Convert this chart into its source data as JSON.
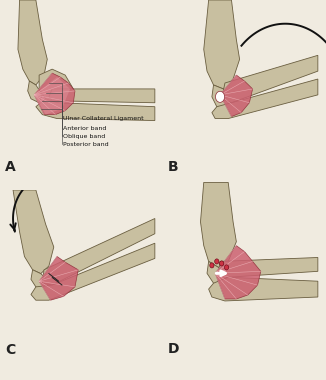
{
  "background_color": "#f0ebe0",
  "panel_labels": [
    "A",
    "B",
    "C",
    "D"
  ],
  "panel_label_fontsize": 10,
  "panel_label_color": "#222222",
  "labels_A": [
    "Ulnar Collateral Ligament",
    "Anterior band",
    "Oblique band",
    "Posterior band"
  ],
  "label_fontsize": 4.5,
  "label_color": "#111111",
  "bone_color": "#c8bfa0",
  "bone_edge_color": "#6a5e40",
  "bone_shadow": "#a09070",
  "ligament_color": "#cc6070",
  "ligament_edge_color": "#8b2a35",
  "ligament_light": "#e8a0a8",
  "arrow_color": "#111111",
  "line_color": "#444444",
  "white_color": "#ffffff",
  "dot_color": "#cc3344",
  "fig_width": 3.26,
  "fig_height": 3.8,
  "dpi": 100
}
